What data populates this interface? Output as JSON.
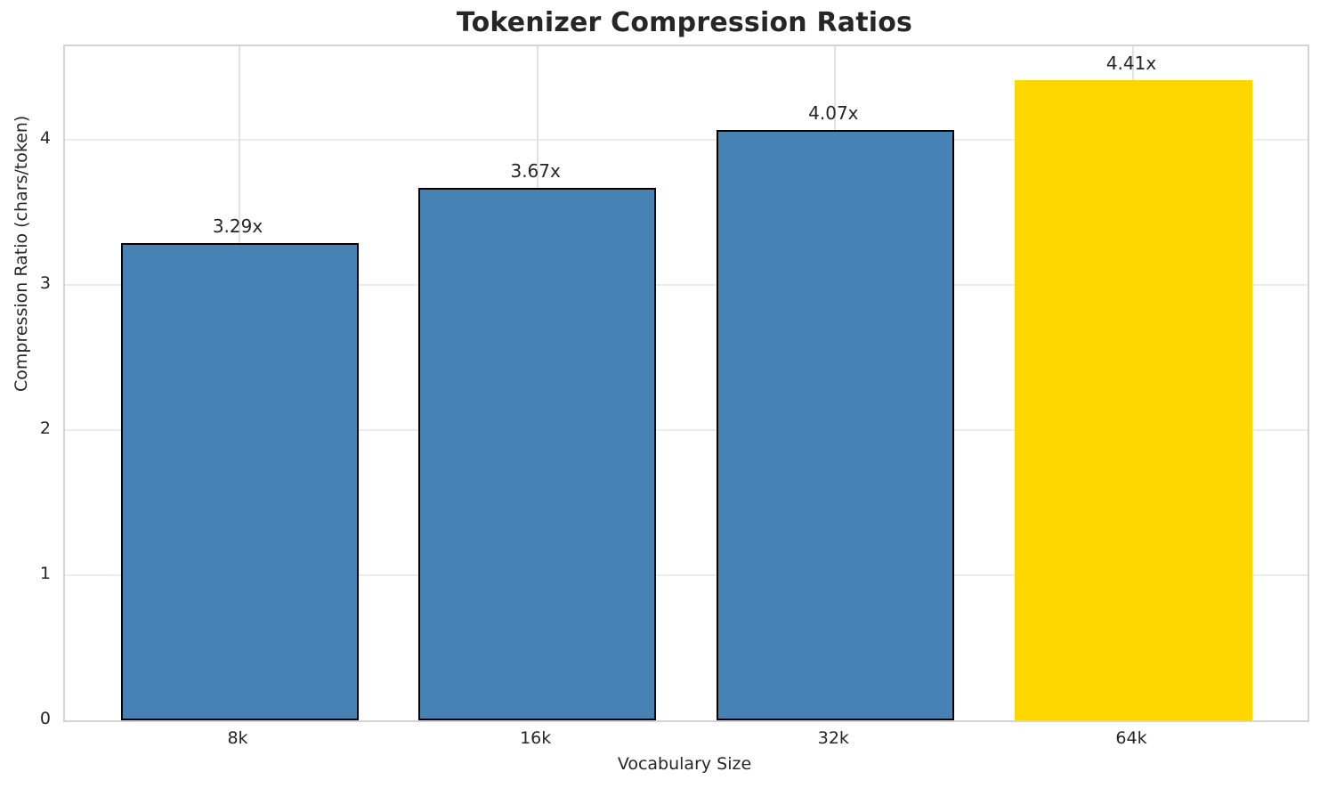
{
  "chart_data": {
    "type": "bar",
    "title": "Tokenizer Compression Ratios",
    "xlabel": "Vocabulary Size",
    "ylabel": "Compression Ratio (chars/token)",
    "categories": [
      "8k",
      "16k",
      "32k",
      "64k"
    ],
    "values": [
      3.29,
      3.67,
      4.07,
      4.41
    ],
    "bar_labels": [
      "3.29x",
      "3.67x",
      "4.07x",
      "4.41x"
    ],
    "yticks": [
      0,
      1,
      2,
      3,
      4
    ],
    "ylim": [
      0,
      4.645
    ],
    "grid": true,
    "legend": "none",
    "highlight_index": 3,
    "colors": {
      "bar": "#4682b4",
      "highlight_bar": "#ffd700",
      "bar_edge": "#000000",
      "grid_h": "#ececec",
      "grid_v": "#e2e2e2",
      "spine": "#d4d4d4",
      "text": "#262626",
      "background": "#ffffff"
    }
  }
}
